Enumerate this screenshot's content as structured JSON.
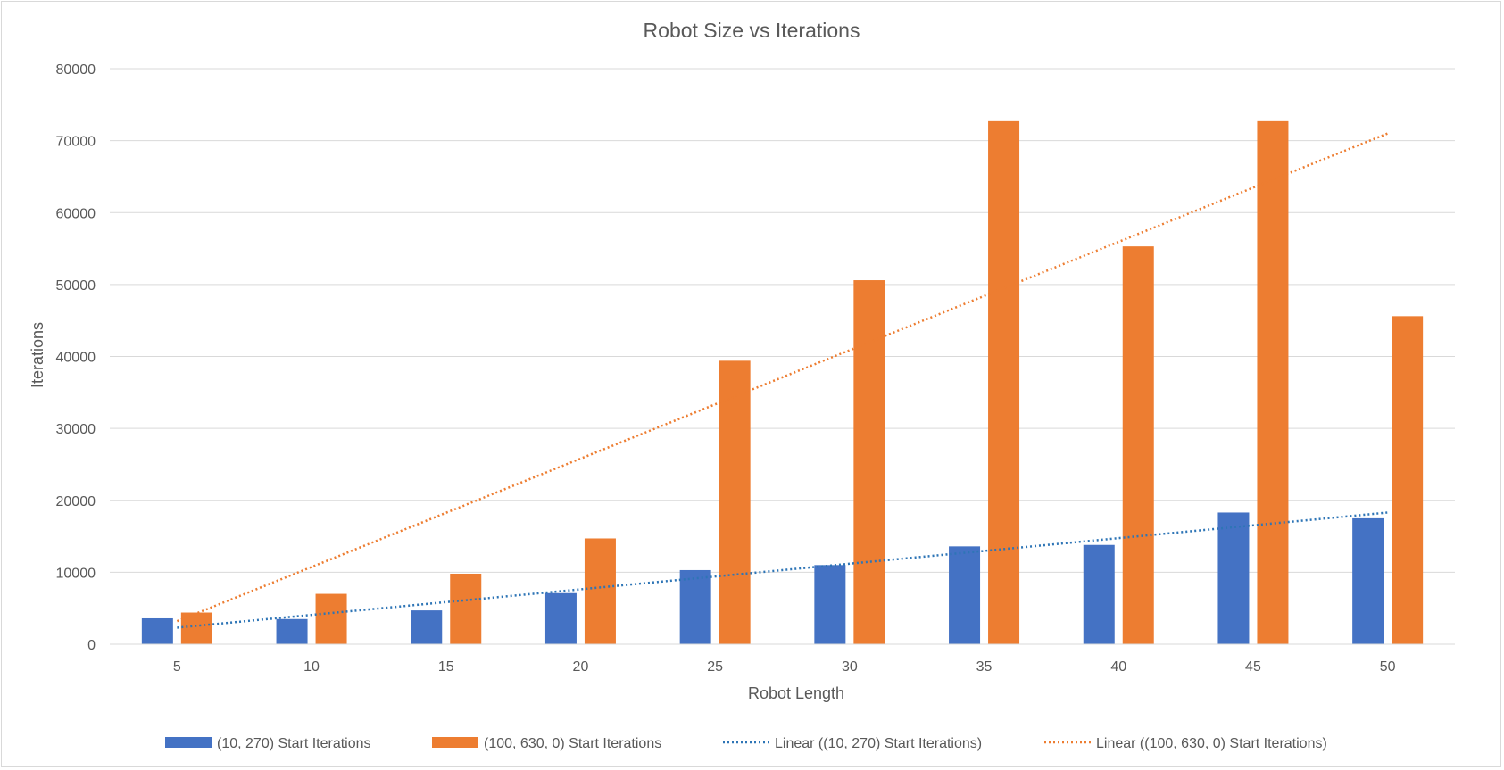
{
  "chart_data": {
    "type": "bar",
    "title": "Robot Size vs Iterations",
    "xlabel": "Robot Length",
    "ylabel": "Iterations",
    "ylim": [
      0,
      80000
    ],
    "yticks": [
      "0",
      "10000",
      "20000",
      "30000",
      "40000",
      "50000",
      "60000",
      "70000",
      "80000"
    ],
    "categories": [
      "5",
      "10",
      "15",
      "20",
      "25",
      "30",
      "35",
      "40",
      "45",
      "50"
    ],
    "grid": true,
    "legend_position": "bottom",
    "series": [
      {
        "name": "(10, 270) Start Iterations",
        "color": "#4472C4",
        "values": [
          3600,
          3500,
          4700,
          7100,
          10300,
          11000,
          13600,
          13800,
          18300,
          17500
        ]
      },
      {
        "name": "(100, 630, 0) Start Iterations",
        "color": "#ED7D31",
        "values": [
          4400,
          7000,
          9800,
          14700,
          39400,
          50600,
          72700,
          55300,
          72700,
          45600
        ]
      }
    ],
    "trendlines": [
      {
        "name": "Linear ((10, 270) Start Iterations)",
        "color": "#2E75B6",
        "type": "linear",
        "start": 2300,
        "end": 18300
      },
      {
        "name": "Linear ((100, 630, 0) Start Iterations)",
        "color": "#ED7D31",
        "type": "linear",
        "start": 3200,
        "end": 71000
      }
    ]
  }
}
